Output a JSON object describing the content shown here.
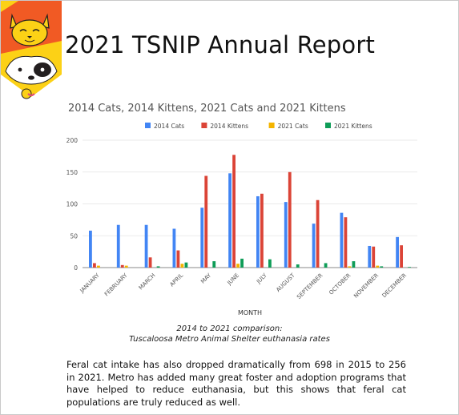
{
  "document": {
    "title": "2021 TSNIP Annual Report",
    "caption_line1": "2014 to 2021 comparison:",
    "caption_line2": "Tuscaloosa Metro Animal Shelter euthanasia rates",
    "body": "Feral cat intake has also dropped dramatically from 698 in 2015 to 256 in 2021. Metro has added many great foster and adoption programs that have helped to reduce euthanasia, but this shows that feral cat populations are truly reduced as well."
  },
  "logo": {
    "icons": [
      "cat-face-icon",
      "dog-face-icon"
    ],
    "colors": [
      "#f15a24",
      "#fcd116",
      "#ffffff",
      "#231f20"
    ]
  },
  "chart_data": {
    "type": "bar",
    "title": "2014 Cats, 2014 Kittens, 2021 Cats and 2021 Kittens",
    "xlabel": "MONTH",
    "ylabel": "",
    "ylim": [
      0,
      200
    ],
    "yticks": [
      0,
      50,
      100,
      150,
      200
    ],
    "grid": true,
    "legend": "top",
    "categories": [
      "JANUARY",
      "FEBRUARY",
      "MARCH",
      "APRIL",
      "MAY",
      "JUNE",
      "JULY",
      "AUGUST",
      "SEPTEMBER",
      "OCTOBER",
      "NOVEMBER",
      "DECEMBER"
    ],
    "series": [
      {
        "name": "2014 Cats",
        "color": "#4285f4",
        "values": [
          58,
          67,
          67,
          61,
          94,
          148,
          112,
          103,
          69,
          86,
          34,
          48
        ]
      },
      {
        "name": "2014 Kittens",
        "color": "#db4437",
        "values": [
          7,
          4,
          16,
          27,
          144,
          177,
          116,
          150,
          106,
          79,
          33,
          35
        ]
      },
      {
        "name": "2021 Cats",
        "color": "#f4b400",
        "values": [
          3,
          3,
          0,
          6,
          0,
          6,
          0,
          0,
          0,
          2,
          3,
          0
        ]
      },
      {
        "name": "2021 Kittens",
        "color": "#0f9d58",
        "values": [
          0,
          0,
          2,
          8,
          10,
          14,
          13,
          5,
          7,
          10,
          2,
          1
        ]
      }
    ]
  }
}
